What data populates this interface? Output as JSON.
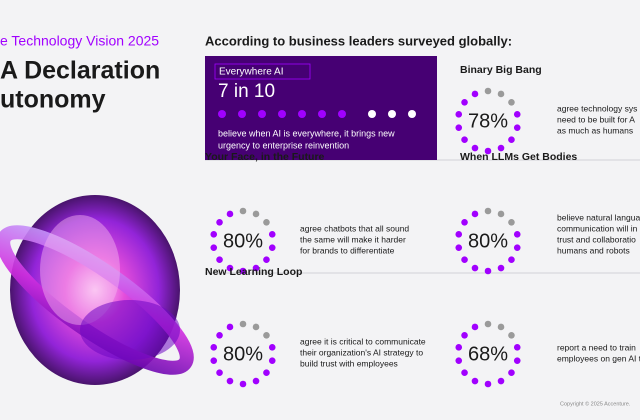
{
  "header": {
    "kicker": "e Technology Vision 2025",
    "title_lines": [
      "A Declaration",
      "utonomy"
    ]
  },
  "intro": "According to business leaders surveyed globally:",
  "featured": {
    "label": "Everywhere AI",
    "stat": "7 in 10",
    "text_lines": [
      "believe when AI is everywhere, it brings new",
      "urgency to enterprise reinvention"
    ]
  },
  "cards": [
    {
      "title": "Binary Big Bang",
      "stat": "78%",
      "text_lines": [
        "agree technology sys",
        "need to be built for A",
        "as much as humans"
      ]
    },
    {
      "title": "Your Face, in the Future",
      "stat": "80%",
      "text_lines": [
        "agree chatbots that all sound",
        "the same will make it harder",
        "for brands to differentiate"
      ]
    },
    {
      "title": "When LLMs Get Bodies",
      "stat": "80%",
      "text_lines": [
        "believe natural langua",
        "communication will in",
        "trust and collaboratio",
        "humans and robots"
      ]
    },
    {
      "title": "New Learning Loop",
      "stat": "80%",
      "text_lines": [
        "agree it is critical to communicate",
        "their organization's AI strategy to",
        "build trust with employees"
      ]
    },
    {
      "stat": "68%",
      "text_lines": [
        "report a need to train",
        "employees on gen AI t"
      ]
    }
  ],
  "footer": "Copyright © 2025 Accenture."
}
